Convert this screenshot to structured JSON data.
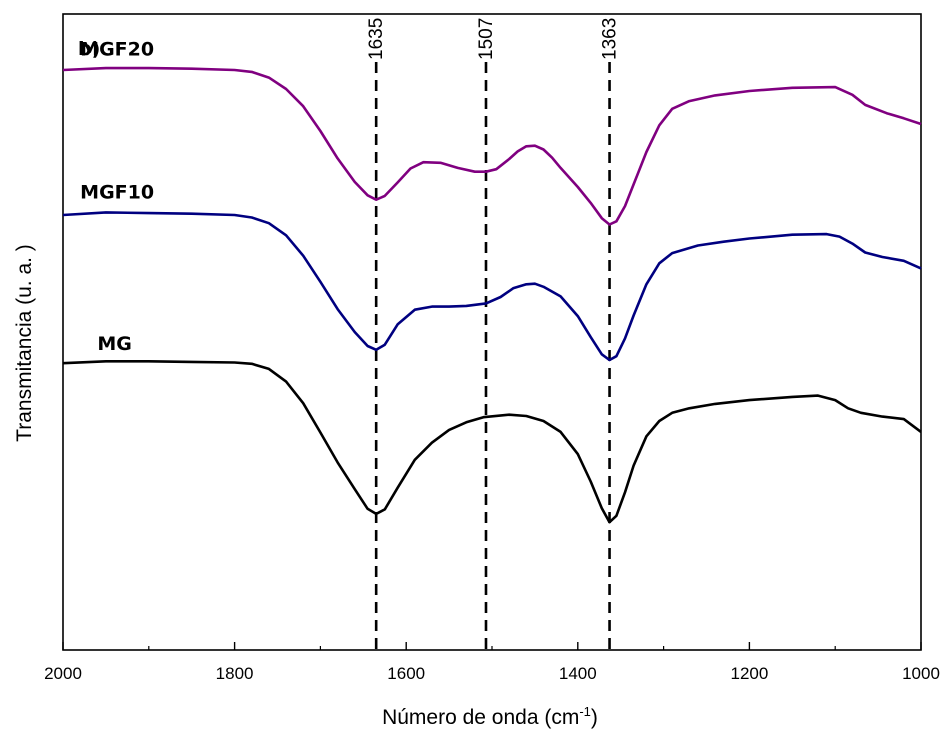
{
  "chart_data": {
    "type": "line",
    "panel_label": "b)",
    "xlabel": "Número de onda (cm",
    "xlabel_sup": "-1",
    "xlabel_close": ")",
    "ylabel": "Transmitancia (u. a. )",
    "xlim": [
      2000,
      1000
    ],
    "x_reversed": true,
    "x_ticks": [
      2000,
      1800,
      1600,
      1400,
      1200,
      1000
    ],
    "y_ticks_shown": false,
    "y_units": "arbitrary (offset curves, 0 = bottom of plot, 100 = top)",
    "ylim": [
      0,
      100
    ],
    "grid": false,
    "reference_lines": [
      {
        "x": 1635,
        "label": "1635",
        "style": "dashed"
      },
      {
        "x": 1507,
        "label": "1507",
        "style": "dashed"
      },
      {
        "x": 1363,
        "label": "1363",
        "style": "dashed"
      }
    ],
    "series": [
      {
        "name": "MGF20",
        "color": "#800080",
        "points": [
          [
            2000,
            91.2
          ],
          [
            1950,
            91.5
          ],
          [
            1900,
            91.5
          ],
          [
            1850,
            91.4
          ],
          [
            1800,
            91.2
          ],
          [
            1780,
            90.9
          ],
          [
            1760,
            90.0
          ],
          [
            1740,
            88.2
          ],
          [
            1720,
            85.5
          ],
          [
            1700,
            81.6
          ],
          [
            1680,
            77.3
          ],
          [
            1660,
            73.6
          ],
          [
            1645,
            71.5
          ],
          [
            1635,
            70.8
          ],
          [
            1625,
            71.4
          ],
          [
            1610,
            73.5
          ],
          [
            1595,
            75.7
          ],
          [
            1580,
            76.7
          ],
          [
            1560,
            76.6
          ],
          [
            1540,
            75.8
          ],
          [
            1520,
            75.2
          ],
          [
            1507,
            75.2
          ],
          [
            1495,
            75.6
          ],
          [
            1480,
            77.2
          ],
          [
            1470,
            78.4
          ],
          [
            1460,
            79.2
          ],
          [
            1450,
            79.3
          ],
          [
            1440,
            78.7
          ],
          [
            1430,
            77.4
          ],
          [
            1420,
            75.8
          ],
          [
            1400,
            72.8
          ],
          [
            1385,
            70.3
          ],
          [
            1372,
            67.9
          ],
          [
            1363,
            66.9
          ],
          [
            1355,
            67.4
          ],
          [
            1345,
            69.8
          ],
          [
            1335,
            73.2
          ],
          [
            1320,
            78.3
          ],
          [
            1305,
            82.5
          ],
          [
            1290,
            85.1
          ],
          [
            1270,
            86.3
          ],
          [
            1240,
            87.2
          ],
          [
            1200,
            87.9
          ],
          [
            1150,
            88.4
          ],
          [
            1100,
            88.5
          ],
          [
            1080,
            87.3
          ],
          [
            1065,
            85.7
          ],
          [
            1040,
            84.4
          ],
          [
            1020,
            83.6
          ],
          [
            1000,
            82.7
          ]
        ]
      },
      {
        "name": "MGF10",
        "color": "#000080",
        "points": [
          [
            2000,
            68.4
          ],
          [
            1950,
            68.8
          ],
          [
            1900,
            68.7
          ],
          [
            1850,
            68.6
          ],
          [
            1800,
            68.4
          ],
          [
            1780,
            68.0
          ],
          [
            1760,
            67.1
          ],
          [
            1740,
            65.2
          ],
          [
            1720,
            62.0
          ],
          [
            1700,
            57.9
          ],
          [
            1680,
            53.6
          ],
          [
            1660,
            50.0
          ],
          [
            1645,
            47.8
          ],
          [
            1635,
            47.2
          ],
          [
            1625,
            48.0
          ],
          [
            1610,
            51.2
          ],
          [
            1590,
            53.5
          ],
          [
            1570,
            54.0
          ],
          [
            1550,
            54.0
          ],
          [
            1530,
            54.1
          ],
          [
            1507,
            54.5
          ],
          [
            1490,
            55.5
          ],
          [
            1475,
            56.9
          ],
          [
            1460,
            57.5
          ],
          [
            1450,
            57.6
          ],
          [
            1440,
            57.1
          ],
          [
            1420,
            55.6
          ],
          [
            1400,
            52.5
          ],
          [
            1385,
            49.2
          ],
          [
            1372,
            46.5
          ],
          [
            1363,
            45.6
          ],
          [
            1355,
            46.2
          ],
          [
            1345,
            49.0
          ],
          [
            1335,
            52.6
          ],
          [
            1320,
            57.5
          ],
          [
            1305,
            60.8
          ],
          [
            1290,
            62.4
          ],
          [
            1260,
            63.6
          ],
          [
            1230,
            64.2
          ],
          [
            1200,
            64.7
          ],
          [
            1150,
            65.3
          ],
          [
            1110,
            65.4
          ],
          [
            1095,
            65.0
          ],
          [
            1080,
            63.9
          ],
          [
            1065,
            62.5
          ],
          [
            1045,
            61.8
          ],
          [
            1020,
            61.2
          ],
          [
            1000,
            60.0
          ]
        ]
      },
      {
        "name": "MG",
        "color": "#000000",
        "points": [
          [
            2000,
            45.1
          ],
          [
            1950,
            45.4
          ],
          [
            1900,
            45.4
          ],
          [
            1850,
            45.3
          ],
          [
            1800,
            45.2
          ],
          [
            1780,
            45.0
          ],
          [
            1760,
            44.2
          ],
          [
            1740,
            42.2
          ],
          [
            1720,
            38.8
          ],
          [
            1700,
            34.2
          ],
          [
            1680,
            29.5
          ],
          [
            1660,
            25.3
          ],
          [
            1645,
            22.2
          ],
          [
            1635,
            21.4
          ],
          [
            1625,
            22.1
          ],
          [
            1610,
            25.5
          ],
          [
            1590,
            29.9
          ],
          [
            1570,
            32.6
          ],
          [
            1550,
            34.6
          ],
          [
            1530,
            35.8
          ],
          [
            1510,
            36.6
          ],
          [
            1480,
            37.0
          ],
          [
            1460,
            36.8
          ],
          [
            1440,
            36.0
          ],
          [
            1420,
            34.3
          ],
          [
            1400,
            30.8
          ],
          [
            1385,
            26.5
          ],
          [
            1372,
            22.3
          ],
          [
            1363,
            20.1
          ],
          [
            1355,
            21.1
          ],
          [
            1345,
            24.8
          ],
          [
            1335,
            29.0
          ],
          [
            1320,
            33.6
          ],
          [
            1305,
            36.0
          ],
          [
            1290,
            37.3
          ],
          [
            1270,
            38.0
          ],
          [
            1240,
            38.7
          ],
          [
            1200,
            39.3
          ],
          [
            1150,
            39.8
          ],
          [
            1120,
            40.0
          ],
          [
            1100,
            39.3
          ],
          [
            1085,
            38.0
          ],
          [
            1070,
            37.3
          ],
          [
            1045,
            36.7
          ],
          [
            1020,
            36.3
          ],
          [
            1000,
            34.3
          ]
        ]
      }
    ],
    "series_labels": [
      {
        "text": "MGF20",
        "x": 1980,
        "y": 93.5
      },
      {
        "text": "MGF10",
        "x": 1980,
        "y": 71.0
      },
      {
        "text": "MG",
        "x": 1960,
        "y": 47.2
      }
    ]
  }
}
